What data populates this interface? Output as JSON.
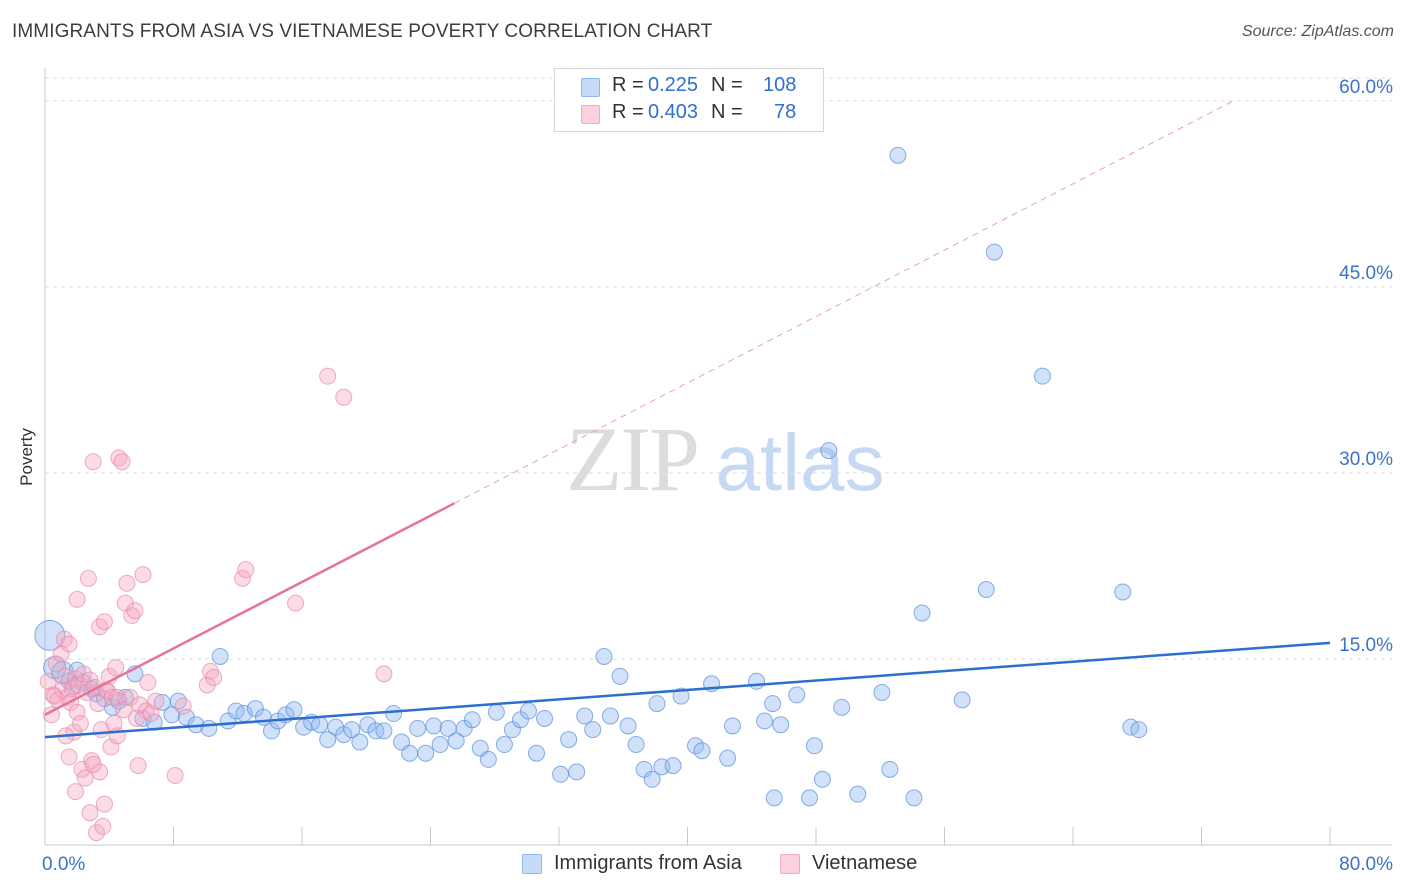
{
  "header": {
    "title": "IMMIGRANTS FROM ASIA VS VIETNAMESE POVERTY CORRELATION CHART",
    "source": "Source: ZipAtlas.com"
  },
  "watermark": {
    "zip": "ZIP",
    "atlas": "atlas"
  },
  "legend": {
    "rows": [
      {
        "r_label": "R =",
        "r_value": "0.225",
        "n_label": "N =",
        "n_value": "108",
        "color": "#8fb8f0"
      },
      {
        "r_label": "R =",
        "r_value": "0.403",
        "n_label": "N =",
        "n_value": "78",
        "color": "#f5a9c3"
      }
    ]
  },
  "chart_data": {
    "type": "scatter",
    "xlabel": "",
    "ylabel": "Poverty",
    "xlim": [
      0,
      80
    ],
    "ylim": [
      0,
      62
    ],
    "x_ticks": [
      0,
      8,
      16,
      24,
      32,
      40,
      48,
      56,
      64,
      72,
      80
    ],
    "x_tick_labels": [
      {
        "value": 0,
        "label": "0.0%"
      },
      {
        "value": 80,
        "label": "80.0%"
      }
    ],
    "y_ticks": [
      {
        "value": 15,
        "label": "15.0%"
      },
      {
        "value": 30,
        "label": "30.0%"
      },
      {
        "value": 45,
        "label": "45.0%"
      },
      {
        "value": 60,
        "label": "60.0%"
      }
    ],
    "grid": true,
    "legend_position": "bottom",
    "series": [
      {
        "name": "Immigrants from Asia",
        "color": "#8fb8f0",
        "stroke": "#5a8fd8",
        "trend_color": "#2c6fce",
        "trend": {
          "x0": 0,
          "y0": 8.7,
          "x1": 80,
          "y1": 16.3,
          "dashed_from": null
        },
        "points": [
          [
            0.3,
            16.9
          ],
          [
            0.6,
            14.3
          ],
          [
            1.1,
            13.9
          ],
          [
            1.5,
            13.2
          ],
          [
            1.8,
            12.8
          ],
          [
            2.0,
            14.1
          ],
          [
            2.4,
            13.1
          ],
          [
            2.9,
            12.6
          ],
          [
            3.2,
            12.2
          ],
          [
            3.7,
            11.8
          ],
          [
            4.2,
            11.1
          ],
          [
            4.6,
            11.6
          ],
          [
            5.0,
            11.9
          ],
          [
            5.6,
            13.8
          ],
          [
            6.1,
            10.2
          ],
          [
            6.8,
            9.9
          ],
          [
            7.3,
            11.5
          ],
          [
            7.9,
            10.5
          ],
          [
            8.3,
            11.6
          ],
          [
            8.8,
            10.3
          ],
          [
            9.4,
            9.7
          ],
          [
            10.2,
            9.4
          ],
          [
            10.9,
            15.2
          ],
          [
            11.4,
            10.0
          ],
          [
            11.9,
            10.8
          ],
          [
            12.4,
            10.6
          ],
          [
            13.1,
            11.0
          ],
          [
            13.6,
            10.3
          ],
          [
            14.1,
            9.2
          ],
          [
            14.5,
            10.0
          ],
          [
            15.0,
            10.5
          ],
          [
            15.5,
            10.9
          ],
          [
            16.1,
            9.5
          ],
          [
            16.6,
            9.9
          ],
          [
            17.1,
            9.7
          ],
          [
            17.6,
            8.5
          ],
          [
            18.1,
            9.5
          ],
          [
            18.6,
            8.9
          ],
          [
            19.1,
            9.3
          ],
          [
            19.6,
            8.3
          ],
          [
            20.1,
            9.7
          ],
          [
            20.6,
            9.2
          ],
          [
            21.1,
            9.2
          ],
          [
            21.7,
            10.6
          ],
          [
            22.2,
            8.3
          ],
          [
            22.7,
            7.4
          ],
          [
            23.2,
            9.4
          ],
          [
            23.7,
            7.4
          ],
          [
            24.2,
            9.6
          ],
          [
            24.6,
            8.1
          ],
          [
            25.1,
            9.4
          ],
          [
            25.6,
            8.4
          ],
          [
            26.1,
            9.4
          ],
          [
            26.6,
            10.1
          ],
          [
            27.1,
            7.8
          ],
          [
            27.6,
            6.9
          ],
          [
            28.1,
            10.7
          ],
          [
            28.6,
            8.1
          ],
          [
            29.1,
            9.3
          ],
          [
            29.6,
            10.1
          ],
          [
            30.1,
            10.8
          ],
          [
            30.6,
            7.4
          ],
          [
            31.1,
            10.2
          ],
          [
            32.1,
            5.7
          ],
          [
            32.6,
            8.5
          ],
          [
            33.1,
            5.9
          ],
          [
            33.6,
            10.4
          ],
          [
            34.1,
            9.3
          ],
          [
            34.8,
            15.2
          ],
          [
            35.2,
            10.4
          ],
          [
            35.8,
            13.6
          ],
          [
            36.3,
            9.6
          ],
          [
            36.8,
            8.1
          ],
          [
            37.3,
            6.1
          ],
          [
            37.8,
            5.3
          ],
          [
            38.1,
            11.4
          ],
          [
            38.4,
            6.3
          ],
          [
            39.1,
            6.4
          ],
          [
            39.6,
            12.0
          ],
          [
            40.5,
            8.0
          ],
          [
            40.9,
            7.6
          ],
          [
            41.5,
            13.0
          ],
          [
            42.5,
            7.0
          ],
          [
            42.8,
            9.6
          ],
          [
            44.3,
            13.2
          ],
          [
            44.8,
            10.0
          ],
          [
            45.3,
            11.4
          ],
          [
            45.8,
            9.7
          ],
          [
            46.8,
            12.1
          ],
          [
            45.4,
            3.8
          ],
          [
            47.6,
            3.8
          ],
          [
            47.9,
            8.0
          ],
          [
            48.4,
            5.3
          ],
          [
            48.8,
            31.8
          ],
          [
            49.6,
            11.1
          ],
          [
            50.6,
            4.1
          ],
          [
            52.1,
            12.3
          ],
          [
            52.6,
            6.1
          ],
          [
            53.1,
            55.6
          ],
          [
            54.1,
            3.8
          ],
          [
            54.6,
            18.7
          ],
          [
            57.1,
            11.7
          ],
          [
            58.6,
            20.6
          ],
          [
            59.1,
            47.8
          ],
          [
            62.1,
            37.8
          ],
          [
            67.1,
            20.4
          ],
          [
            67.6,
            9.5
          ],
          [
            68.1,
            9.3
          ]
        ]
      },
      {
        "name": "Vietnamese",
        "color": "#f5a9c3",
        "stroke": "#e88aa9",
        "trend_color": "#e8739a",
        "trend": {
          "x0": 0,
          "y0": 10.5,
          "x1": 74,
          "y1": 60,
          "dashed_from": 25.5
        },
        "points": [
          [
            0.2,
            13.2
          ],
          [
            0.4,
            10.5
          ],
          [
            0.5,
            12.1
          ],
          [
            0.7,
            14.6
          ],
          [
            0.8,
            11.7
          ],
          [
            1.0,
            15.4
          ],
          [
            1.1,
            12.5
          ],
          [
            1.2,
            16.6
          ],
          [
            1.3,
            13.6
          ],
          [
            1.4,
            11.9
          ],
          [
            1.5,
            16.2
          ],
          [
            1.5,
            7.1
          ],
          [
            1.6,
            11.5
          ],
          [
            1.7,
            12.6
          ],
          [
            1.8,
            9.1
          ],
          [
            1.9,
            13.4
          ],
          [
            2.0,
            10.7
          ],
          [
            2.0,
            19.8
          ],
          [
            2.1,
            12.9
          ],
          [
            2.3,
            6.1
          ],
          [
            2.4,
            13.8
          ],
          [
            2.5,
            5.4
          ],
          [
            2.6,
            12.3
          ],
          [
            2.7,
            21.5
          ],
          [
            2.8,
            2.6
          ],
          [
            2.8,
            13.3
          ],
          [
            2.9,
            6.8
          ],
          [
            3.0,
            30.9
          ],
          [
            3.1,
            12.7
          ],
          [
            3.2,
            1.0
          ],
          [
            3.3,
            11.4
          ],
          [
            3.4,
            17.6
          ],
          [
            3.4,
            5.9
          ],
          [
            3.5,
            9.3
          ],
          [
            3.6,
            1.5
          ],
          [
            3.7,
            3.3
          ],
          [
            3.7,
            18.0
          ],
          [
            3.8,
            12.5
          ],
          [
            3.9,
            12.4
          ],
          [
            4.0,
            13.6
          ],
          [
            4.1,
            7.9
          ],
          [
            4.2,
            11.9
          ],
          [
            4.3,
            9.8
          ],
          [
            4.4,
            14.3
          ],
          [
            4.5,
            11.9
          ],
          [
            4.6,
            31.2
          ],
          [
            4.8,
            30.9
          ],
          [
            4.9,
            10.9
          ],
          [
            5.0,
            19.5
          ],
          [
            5.1,
            21.1
          ],
          [
            5.3,
            11.9
          ],
          [
            5.4,
            18.5
          ],
          [
            5.6,
            18.9
          ],
          [
            5.8,
            6.4
          ],
          [
            5.9,
            11.3
          ],
          [
            6.1,
            21.8
          ],
          [
            6.3,
            10.8
          ],
          [
            6.4,
            13.1
          ],
          [
            6.6,
            10.6
          ],
          [
            8.1,
            5.6
          ],
          [
            8.6,
            11.2
          ],
          [
            10.1,
            12.9
          ],
          [
            10.3,
            14.0
          ],
          [
            10.5,
            13.5
          ],
          [
            12.3,
            21.5
          ],
          [
            12.5,
            22.2
          ],
          [
            15.6,
            19.5
          ],
          [
            17.6,
            37.8
          ],
          [
            18.6,
            36.1
          ],
          [
            21.1,
            13.8
          ],
          [
            1.9,
            4.3
          ],
          [
            2.2,
            9.8
          ],
          [
            3.0,
            6.5
          ],
          [
            4.5,
            8.8
          ],
          [
            5.7,
            10.2
          ],
          [
            6.9,
            11.6
          ],
          [
            0.6,
            12.0
          ],
          [
            1.3,
            8.8
          ]
        ]
      }
    ]
  },
  "bottom_legend": {
    "items": [
      {
        "label": "Immigrants from Asia",
        "color": "#8fb8f0"
      },
      {
        "label": "Vietnamese",
        "color": "#f5a9c3"
      }
    ]
  }
}
